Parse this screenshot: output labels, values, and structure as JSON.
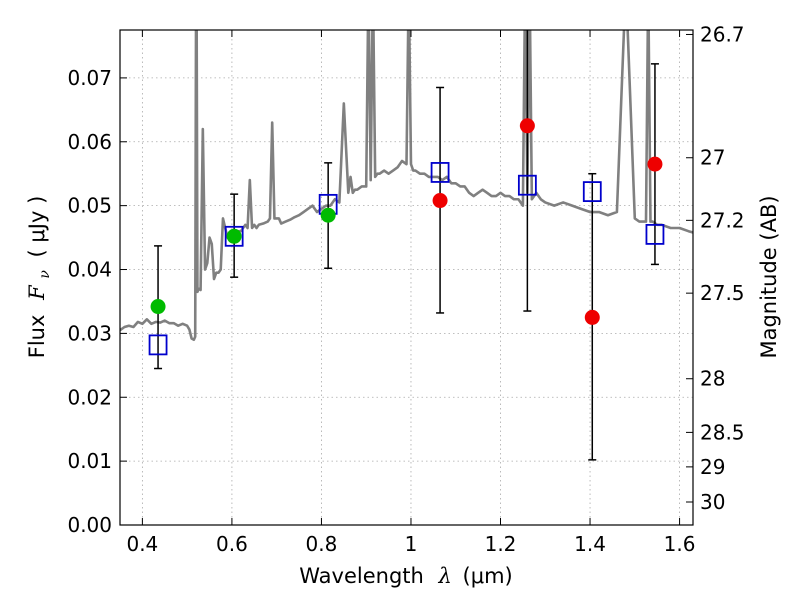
{
  "chart_data": {
    "type": "scatter",
    "xlabel": {
      "main": "Wavelength",
      "symbol": "λ",
      "unit": "(μm)"
    },
    "ylabel": {
      "main": "Flux",
      "symbol_base": "F",
      "symbol_sub": "ν",
      "unit": "( μJy )"
    },
    "y2label": "Magnitude (AB)",
    "xlim": [
      0.35,
      1.63
    ],
    "ylim": [
      0.0,
      0.0775
    ],
    "grid": true,
    "x_ticks": [
      {
        "value": 0.4,
        "label": "0.4"
      },
      {
        "value": 0.6,
        "label": "0.6"
      },
      {
        "value": 0.8,
        "label": "0.8"
      },
      {
        "value": 1.0,
        "label": "1"
      },
      {
        "value": 1.2,
        "label": "1.2"
      },
      {
        "value": 1.4,
        "label": "1.4"
      },
      {
        "value": 1.6,
        "label": "1.6"
      }
    ],
    "y_ticks": [
      {
        "value": 0.0,
        "label": "0.00"
      },
      {
        "value": 0.01,
        "label": "0.01"
      },
      {
        "value": 0.02,
        "label": "0.02"
      },
      {
        "value": 0.03,
        "label": "0.03"
      },
      {
        "value": 0.04,
        "label": "0.04"
      },
      {
        "value": 0.05,
        "label": "0.05"
      },
      {
        "value": 0.06,
        "label": "0.06"
      },
      {
        "value": 0.07,
        "label": "0.07"
      }
    ],
    "y2_ticks": [
      {
        "flux": 0.0768,
        "label": "26.7"
      },
      {
        "flux": 0.0575,
        "label": "27"
      },
      {
        "flux": 0.0477,
        "label": "27.2"
      },
      {
        "flux": 0.0363,
        "label": "27.5"
      },
      {
        "flux": 0.0229,
        "label": "28"
      },
      {
        "flux": 0.0145,
        "label": "28.5"
      },
      {
        "flux": 0.0091,
        "label": "29"
      },
      {
        "flux": 0.0036,
        "label": "30"
      }
    ],
    "colors": {
      "model": "#808080",
      "green": "#00bb00",
      "red": "#ee0000",
      "square": "#0000cc",
      "error": "#000000",
      "grid": "#aaaaaa"
    },
    "series": [
      {
        "kind": "model_spectrum",
        "x": [
          0.35,
          0.36,
          0.37,
          0.38,
          0.39,
          0.4,
          0.41,
          0.42,
          0.43,
          0.44,
          0.45,
          0.46,
          0.47,
          0.48,
          0.49,
          0.5,
          0.505,
          0.51,
          0.515,
          0.518,
          0.52,
          0.521,
          0.523,
          0.526,
          0.53,
          0.535,
          0.54,
          0.545,
          0.55,
          0.555,
          0.56,
          0.565,
          0.57,
          0.575,
          0.58,
          0.59,
          0.6,
          0.61,
          0.62,
          0.63,
          0.635,
          0.64,
          0.645,
          0.65,
          0.655,
          0.66,
          0.67,
          0.68,
          0.685,
          0.69,
          0.695,
          0.7,
          0.705,
          0.71,
          0.72,
          0.73,
          0.74,
          0.75,
          0.76,
          0.77,
          0.78,
          0.79,
          0.8,
          0.81,
          0.82,
          0.83,
          0.84,
          0.85,
          0.86,
          0.865,
          0.87,
          0.875,
          0.88,
          0.89,
          0.9,
          0.905,
          0.91,
          0.915,
          0.92,
          0.925,
          0.93,
          0.94,
          0.95,
          0.96,
          0.97,
          0.98,
          0.99,
          0.995,
          1.0,
          1.005,
          1.01,
          1.02,
          1.03,
          1.04,
          1.05,
          1.06,
          1.07,
          1.08,
          1.09,
          1.1,
          1.11,
          1.12,
          1.13,
          1.14,
          1.15,
          1.16,
          1.17,
          1.18,
          1.19,
          1.2,
          1.21,
          1.22,
          1.23,
          1.24,
          1.25,
          1.255,
          1.26,
          1.265,
          1.27,
          1.28,
          1.29,
          1.3,
          1.32,
          1.34,
          1.36,
          1.38,
          1.4,
          1.42,
          1.44,
          1.46,
          1.48,
          1.5,
          1.51,
          1.52,
          1.525,
          1.53,
          1.535,
          1.54,
          1.55,
          1.56,
          1.58,
          1.6,
          1.62,
          1.63
        ],
        "y": [
          0.0305,
          0.031,
          0.0312,
          0.031,
          0.0318,
          0.0315,
          0.0322,
          0.0315,
          0.0318,
          0.0317,
          0.032,
          0.0316,
          0.0316,
          0.0312,
          0.0315,
          0.0312,
          0.0306,
          0.0292,
          0.029,
          0.0295,
          0.085,
          0.085,
          0.0365,
          0.037,
          0.0368,
          0.062,
          0.04,
          0.041,
          0.045,
          0.044,
          0.0385,
          0.0395,
          0.0395,
          0.04,
          0.048,
          0.045,
          0.045,
          0.046,
          0.046,
          0.047,
          0.0465,
          0.054,
          0.0465,
          0.047,
          0.0465,
          0.047,
          0.0472,
          0.0475,
          0.048,
          0.063,
          0.048,
          0.048,
          0.048,
          0.0472,
          0.0475,
          0.0478,
          0.0482,
          0.0485,
          0.049,
          0.0495,
          0.05,
          0.049,
          0.0495,
          0.05,
          0.05,
          0.051,
          0.0505,
          0.066,
          0.052,
          0.0545,
          0.052,
          0.0525,
          0.0525,
          0.053,
          0.053,
          0.085,
          0.054,
          0.085,
          0.0545,
          0.055,
          0.055,
          0.0555,
          0.055,
          0.0555,
          0.056,
          0.057,
          0.0565,
          0.085,
          0.0565,
          0.0555,
          0.0555,
          0.055,
          0.055,
          0.0545,
          0.0545,
          0.0545,
          0.054,
          0.0545,
          0.0535,
          0.0535,
          0.053,
          0.053,
          0.052,
          0.0515,
          0.052,
          0.0525,
          0.052,
          0.0515,
          0.0515,
          0.052,
          0.0515,
          0.0515,
          0.051,
          0.051,
          0.05,
          0.085,
          0.052,
          0.085,
          0.051,
          0.052,
          0.051,
          0.0505,
          0.05,
          0.0505,
          0.05,
          0.0495,
          0.049,
          0.049,
          0.0485,
          0.049,
          0.085,
          0.048,
          0.0475,
          0.0475,
          0.0475,
          0.085,
          0.0475,
          0.0475,
          0.047,
          0.047,
          0.0465,
          0.0465,
          0.046,
          0.0458
        ]
      },
      {
        "kind": "points",
        "color_key": "green",
        "x": [
          0.435,
          0.605,
          0.815
        ],
        "y": [
          0.0342,
          0.0452,
          0.0485
        ]
      },
      {
        "kind": "points",
        "color_key": "red",
        "x": [
          1.065,
          1.26,
          1.405,
          1.545
        ],
        "y": [
          0.0508,
          0.0625,
          0.0325,
          0.0565
        ]
      },
      {
        "kind": "squares",
        "color_key": "square",
        "x": [
          0.435,
          0.605,
          0.815,
          1.065,
          1.26,
          1.405,
          1.545
        ],
        "y": [
          0.0282,
          0.0452,
          0.0502,
          0.0552,
          0.0532,
          0.0522,
          0.0455
        ]
      },
      {
        "kind": "error_bars",
        "x": [
          0.435,
          0.605,
          0.815,
          1.065,
          1.26,
          1.405,
          1.545
        ],
        "low": [
          0.0245,
          0.0388,
          0.0402,
          0.0332,
          0.0335,
          0.0102,
          0.0408
        ],
        "high": [
          0.0437,
          0.0518,
          0.0567,
          0.0685,
          0.085,
          0.055,
          0.0722
        ]
      }
    ]
  }
}
